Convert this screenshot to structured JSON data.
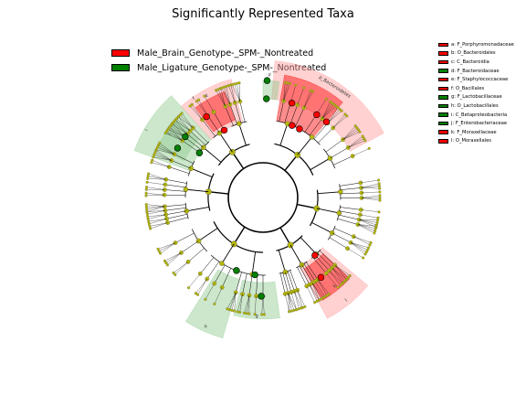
{
  "chart_data": {
    "type": "cladogram",
    "title": "Significantly Represented Taxa",
    "groups": [
      {
        "name": "Male_Brain_Genotype-_SPM-_Nontreated",
        "color": "#ff0000"
      },
      {
        "name": "Male_Ligature_Genotype-_SPM-_Nontreated",
        "color": "#008000"
      }
    ],
    "taxa": [
      {
        "key": "a",
        "label": "a: F_Porphyromonadaceae",
        "group": "red"
      },
      {
        "key": "b",
        "label": "b: O_Bacteroidales",
        "group": "red"
      },
      {
        "key": "c",
        "label": "c: C_Bacteroidia",
        "group": "red"
      },
      {
        "key": "d",
        "label": "d: F_Bacteroidaceae",
        "group": "green"
      },
      {
        "key": "e",
        "label": "e: F_Staphylococcaceae",
        "group": "red"
      },
      {
        "key": "f",
        "label": "f: O_Bacillales",
        "group": "red"
      },
      {
        "key": "g",
        "label": "g: F_Lactobacillaceae",
        "group": "green"
      },
      {
        "key": "h",
        "label": "h: O_Lactobacillales",
        "group": "green"
      },
      {
        "key": "i",
        "label": "i: C_Betaproteobacteria",
        "group": "green"
      },
      {
        "key": "j",
        "label": "j: F_Enterobacteriaceae",
        "group": "green"
      },
      {
        "key": "k",
        "label": "k: F_Moraxellaceae",
        "group": "red"
      },
      {
        "key": "l",
        "label": "l: O_Moraxellales",
        "group": "red"
      }
    ],
    "clade_labels": [
      "p_Bacteroidetes",
      "d",
      "e",
      "f",
      "g",
      "h",
      "i",
      "j",
      "k",
      "l"
    ]
  },
  "colors": {
    "red": "#ff0000",
    "green": "#008000",
    "red_shade": "#ff9999",
    "green_shade": "#8fc98f",
    "node": "#b5b800",
    "line": "#000000"
  }
}
